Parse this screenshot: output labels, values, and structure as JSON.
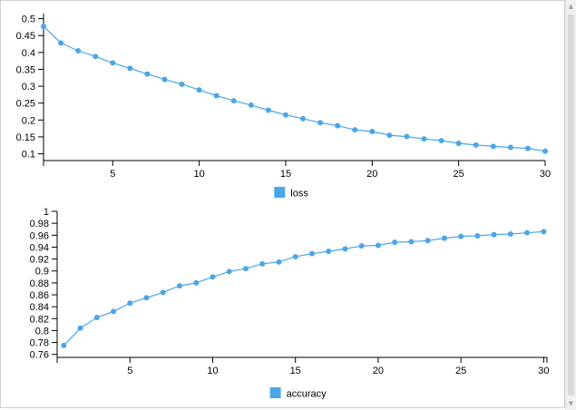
{
  "colors": {
    "series": "#4ba6e8",
    "axis": "#000000"
  },
  "chart_data": [
    {
      "type": "line",
      "title": "",
      "xlabel": "",
      "ylabel": "",
      "legend_position": "bottom-center",
      "grid": false,
      "xlim": [
        1,
        30
      ],
      "ylim": [
        0.08,
        0.515
      ],
      "xticks": [
        5,
        10,
        15,
        20,
        25,
        30
      ],
      "yticks": [
        0.1,
        0.15,
        0.2,
        0.25,
        0.3,
        0.35,
        0.4,
        0.45,
        0.5
      ],
      "ytick_labels": [
        "0.1",
        "0.15",
        "0.2",
        "0.25",
        "0.3",
        "0.35",
        "0.4",
        "0.45",
        "0.5"
      ],
      "x": [
        1,
        2,
        3,
        4,
        5,
        6,
        7,
        8,
        9,
        10,
        11,
        12,
        13,
        14,
        15,
        16,
        17,
        18,
        19,
        20,
        21,
        22,
        23,
        24,
        25,
        26,
        27,
        28,
        29,
        30
      ],
      "series": [
        {
          "name": "loss",
          "values": [
            0.477,
            0.428,
            0.405,
            0.388,
            0.369,
            0.353,
            0.336,
            0.32,
            0.306,
            0.289,
            0.272,
            0.257,
            0.244,
            0.229,
            0.215,
            0.204,
            0.192,
            0.183,
            0.171,
            0.166,
            0.155,
            0.151,
            0.144,
            0.139,
            0.131,
            0.126,
            0.122,
            0.119,
            0.116,
            0.108
          ]
        }
      ]
    },
    {
      "type": "line",
      "title": "",
      "xlabel": "",
      "ylabel": "",
      "legend_position": "bottom-center",
      "grid": false,
      "xlim": [
        0.6,
        30.2
      ],
      "ylim": [
        0.755,
        1.0
      ],
      "xticks": [
        5,
        10,
        15,
        20,
        25,
        30
      ],
      "yticks": [
        0.76,
        0.78,
        0.8,
        0.82,
        0.84,
        0.86,
        0.88,
        0.9,
        0.92,
        0.94,
        0.96,
        0.98,
        1.0
      ],
      "ytick_labels": [
        "0.76",
        "0.78",
        "0.8",
        "0.82",
        "0.84",
        "0.86",
        "0.88",
        "0.9",
        "0.92",
        "0.94",
        "0.96",
        "0.98",
        "1"
      ],
      "x": [
        1,
        2,
        3,
        4,
        5,
        6,
        7,
        8,
        9,
        10,
        11,
        12,
        13,
        14,
        15,
        16,
        17,
        18,
        19,
        20,
        21,
        22,
        23,
        24,
        25,
        26,
        27,
        28,
        29,
        30
      ],
      "series": [
        {
          "name": "accuracy",
          "values": [
            0.775,
            0.804,
            0.822,
            0.832,
            0.846,
            0.855,
            0.864,
            0.875,
            0.88,
            0.89,
            0.899,
            0.904,
            0.912,
            0.915,
            0.924,
            0.929,
            0.933,
            0.937,
            0.942,
            0.943,
            0.948,
            0.949,
            0.951,
            0.955,
            0.958,
            0.959,
            0.961,
            0.962,
            0.964,
            0.966
          ]
        }
      ]
    }
  ]
}
